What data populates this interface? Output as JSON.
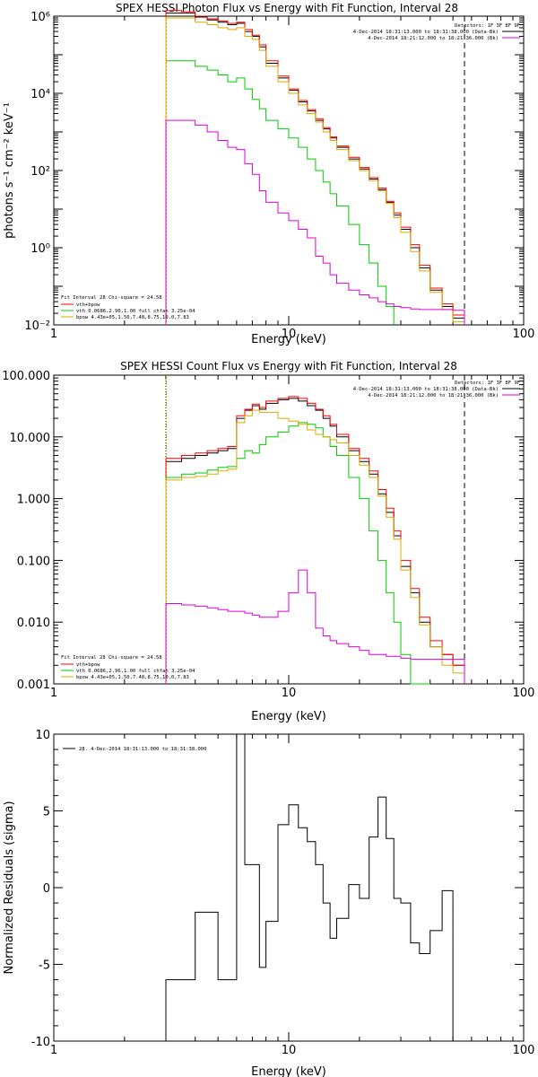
{
  "colors": {
    "total": "#000000",
    "fit": "#ff0000",
    "vth": "#00cc00",
    "bpow": "#ddaa00",
    "bk": "#dd00dd",
    "marker": "#ddaa00"
  },
  "chart_data": [
    {
      "type": "line",
      "id": "photon",
      "title": "SPEX HESSI Photon Flux vs Energy with Fit Function, Interval 28",
      "xlabel": "Energy (keV)",
      "ylabel": "photons s⁻¹ cm⁻² keV⁻¹",
      "xscale": "log",
      "yscale": "log",
      "xlim": [
        1,
        100
      ],
      "ylim": [
        0.01,
        1000000
      ],
      "xticks": [
        "1",
        "10",
        "100"
      ],
      "yticks": [
        "10⁻²",
        "10⁰",
        "10²",
        "10⁴",
        "10⁶"
      ],
      "x_edges": [
        3,
        3.5,
        4,
        4.5,
        5,
        5.5,
        6,
        6.5,
        7,
        7.5,
        8,
        9,
        10,
        11,
        12,
        13,
        14,
        15,
        16,
        18,
        20,
        22,
        24,
        26,
        28,
        30,
        33,
        36,
        40,
        45,
        50,
        56
      ],
      "series": [
        {
          "key": "total",
          "values": [
            1200000.0,
            1200000.0,
            950000.0,
            800000.0,
            700000.0,
            600000.0,
            650000.0,
            400000.0,
            300000.0,
            160000.0,
            60000.0,
            25000.0,
            12000.0,
            6000.0,
            3500.0,
            2000.0,
            1200.0,
            700,
            400,
            200,
            110,
            60,
            32,
            15,
            7,
            3,
            1.0,
            0.3,
            0.08,
            0.03,
            0.015
          ]
        },
        {
          "key": "fit",
          "values": [
            1400000.0,
            1300000.0,
            1000000.0,
            850000.0,
            750000.0,
            650000.0,
            700000.0,
            450000.0,
            320000.0,
            180000.0,
            70000.0,
            28000.0,
            13000.0,
            6500.0,
            3800.0,
            2200.0,
            1300.0,
            750,
            430,
            220,
            120,
            65,
            35,
            16,
            8,
            3.4,
            1.2,
            0.35,
            0.09,
            0.035,
            0.018
          ]
        },
        {
          "key": "vth",
          "values": [
            70000.0,
            70000.0,
            50000.0,
            40000.0,
            30000.0,
            20000.0,
            25000.0,
            13000.0,
            7000.0,
            4000.0,
            2000.0,
            1200.0,
            700,
            400,
            200,
            100,
            50,
            25,
            12,
            4,
            1.2,
            0.4,
            0.1,
            0.03
          ]
        },
        {
          "key": "bpow",
          "values": [
            900000.0,
            900000.0,
            700000.0,
            600000.0,
            500000.0,
            450000.0,
            500000.0,
            300000.0,
            250000.0,
            130000.0,
            50000.0,
            20000.0,
            10000.0,
            5000.0,
            3000.0,
            1800.0,
            1000.0,
            600,
            350,
            180,
            100,
            55,
            30,
            14,
            6,
            2.5,
            0.8,
            0.25,
            0.07,
            0.025,
            0.012
          ]
        },
        {
          "key": "bk",
          "values": [
            2000,
            2000,
            1500,
            1000,
            600,
            400,
            350,
            150,
            80,
            30,
            15,
            8,
            5,
            3,
            1.8,
            0.6,
            0.4,
            0.2,
            0.12,
            0.08,
            0.06,
            0.05,
            0.04,
            0.035,
            0.03,
            0.028,
            0.026,
            0.025,
            0.025,
            0.025,
            0.024
          ]
        }
      ],
      "vlines": {
        "dotted": 3,
        "dashed": 56
      },
      "legend_top": {
        "detectors": "Detectors: 1F 3F 8F 9F",
        "line1": "4-Dec-2014 18:31:13.000 to 18:31:38.000 (Data-Bk)",
        "line2": "4-Dec-2014 18:21:12.000 to 18:21:36.000 (Bk)"
      },
      "legend_bottom": {
        "header": "Fit Interval  28   Chi-square = 24.58",
        "l1": "vth+bpow",
        "l2": "vth 0.0686,2.96,1.00  full chfan 3.25e-04",
        "l3": "bpow 4.43e+05,1.50,7.48,8.75,10.0,7.83"
      }
    },
    {
      "type": "line",
      "id": "count",
      "title": "SPEX HESSI Count Flux vs Energy with Fit Function, Interval 28",
      "xlabel": "Energy (keV)",
      "ylabel": "",
      "xscale": "log",
      "yscale": "log",
      "xlim": [
        1,
        100
      ],
      "ylim": [
        0.001,
        100
      ],
      "xticks": [
        "1",
        "10",
        "100"
      ],
      "yticks": [
        "0.001",
        "0.010",
        "0.100",
        "1.000",
        "10.000",
        "100.000"
      ],
      "x_edges": [
        3,
        3.5,
        4,
        4.5,
        5,
        5.5,
        6,
        6.5,
        7,
        7.5,
        8,
        9,
        10,
        11,
        12,
        13,
        14,
        15,
        16,
        18,
        20,
        22,
        24,
        26,
        28,
        30,
        33,
        36,
        40,
        45,
        50,
        56
      ],
      "series": [
        {
          "key": "total",
          "values": [
            4.0,
            4.5,
            5.0,
            5.5,
            6.0,
            6.5,
            20,
            27,
            32,
            28,
            35,
            40,
            42,
            38,
            32,
            27,
            20,
            15,
            10,
            6,
            4,
            2.5,
            1.2,
            0.6,
            0.25,
            0.08,
            0.03,
            0.01,
            0.004,
            0.003,
            0.002
          ]
        },
        {
          "key": "fit",
          "values": [
            4.5,
            5.0,
            5.5,
            6.0,
            6.5,
            7.0,
            22,
            28,
            34,
            30,
            38,
            42,
            45,
            42,
            35,
            28,
            22,
            16,
            11,
            6.5,
            4.5,
            2.8,
            1.4,
            0.7,
            0.3,
            0.1,
            0.035,
            0.012,
            0.005,
            0.003,
            0.002
          ]
        },
        {
          "key": "vth",
          "values": [
            2.2,
            2.5,
            2.6,
            2.9,
            3.2,
            3.3,
            4.5,
            6,
            5.5,
            7.5,
            10,
            12,
            15,
            17,
            16,
            14,
            10,
            7,
            5,
            2.2,
            1.0,
            0.3,
            0.1,
            0.03,
            0.01,
            0.003,
            0.001,
            0.0005
          ]
        },
        {
          "key": "bpow",
          "values": [
            2.0,
            2.2,
            2.3,
            2.5,
            2.8,
            3.0,
            17,
            22,
            27,
            25,
            25,
            20,
            18,
            16,
            13,
            11,
            10,
            9,
            8,
            5,
            3.5,
            2.2,
            1.1,
            0.5,
            0.22,
            0.07,
            0.025,
            0.009,
            0.004,
            0.002,
            0.0015
          ]
        },
        {
          "key": "bk",
          "values": [
            0.02,
            0.019,
            0.018,
            0.017,
            0.016,
            0.015,
            0.015,
            0.014,
            0.013,
            0.012,
            0.012,
            0.015,
            0.03,
            0.07,
            0.03,
            0.008,
            0.006,
            0.005,
            0.0045,
            0.004,
            0.0035,
            0.003,
            0.003,
            0.0028,
            0.0028,
            0.0026,
            0.0025,
            0.0025,
            0.0025,
            0.0025,
            0.0025
          ]
        }
      ],
      "vlines": {
        "dotted": 3,
        "dashed": 56
      },
      "legend_top": {
        "detectors": "Detectors: 1F 3F 8F 9F",
        "line1": "4-Dec-2014 18:31:13.000 to 18:31:38.000 (Data-Bk)",
        "line2": "4-Dec-2014 18:21:12.000 to 18:21:36.000 (Bk)"
      },
      "legend_bottom": {
        "header": "Fit Interval  28   Chi-square = 24.58",
        "l1": "vth+bpow",
        "l2": "vth 0.0686,2.96,1.00  full chfan 3.25e-04",
        "l3": "bpow 4.43e+05,1.50,7.48,8.75,10.0,7.83"
      }
    },
    {
      "type": "line",
      "id": "resid",
      "title": "",
      "xlabel": "Energy (keV)",
      "ylabel": "Normalized Residuals (sigma)",
      "xscale": "log",
      "yscale": "linear",
      "xlim": [
        1,
        100
      ],
      "ylim": [
        -10,
        10
      ],
      "xticks": [
        "1",
        "10",
        "100"
      ],
      "yticks": [
        "-10",
        "-5",
        "0",
        "5",
        "10"
      ],
      "x_edges": [
        3,
        3.5,
        4,
        4.5,
        5,
        5.5,
        6,
        6.5,
        7,
        7.5,
        8,
        9,
        10,
        11,
        12,
        13,
        14,
        15,
        16,
        18,
        20,
        22,
        24,
        26,
        28,
        30,
        33,
        36,
        40,
        45,
        50,
        56
      ],
      "series": [
        {
          "key": "total",
          "values": [
            -6,
            -6,
            -1.6,
            -1.6,
            -6,
            -6,
            10,
            1.5,
            1.5,
            -5.2,
            -2.2,
            4.1,
            5.4,
            3.9,
            3.0,
            1.5,
            -1.0,
            -3.3,
            -2.0,
            0.2,
            -0.7,
            3.3,
            5.9,
            3.2,
            -0.7,
            -1.0,
            -3.6,
            -4.3,
            -2.8,
            -0.2,
            -10
          ]
        }
      ],
      "legend_top": {
        "line1": "28.  4-Dec-2014 18:31:13.000 to 18:31:38.000"
      }
    }
  ]
}
